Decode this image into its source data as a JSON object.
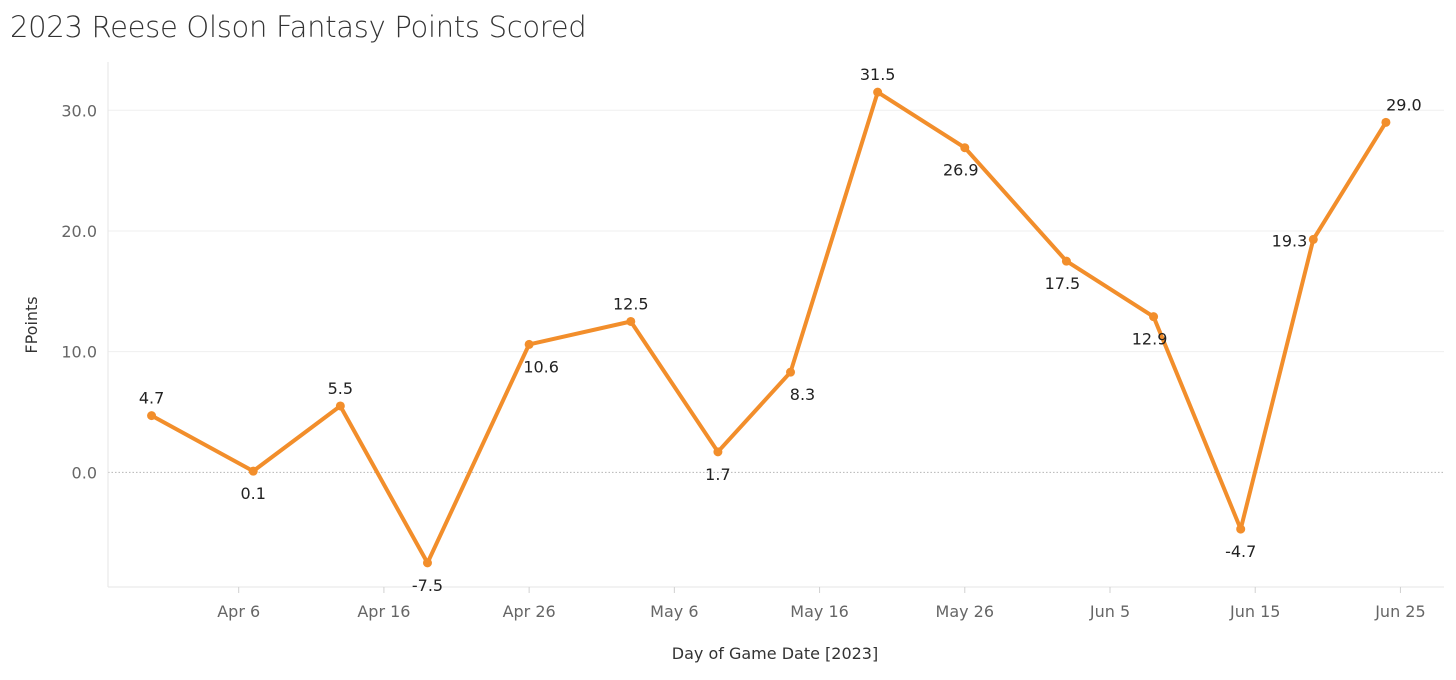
{
  "chart_data": {
    "type": "line",
    "title": "2023 Reese Olson Fantasy Points Scored",
    "xlabel": "Day of Game Date [2023]",
    "ylabel": "FPoints",
    "x_range": [
      "2023-03-28",
      "2023-06-28"
    ],
    "ylim": [
      -9.5,
      34
    ],
    "y_ticks": [
      0,
      10,
      20,
      30
    ],
    "y_tick_labels": [
      "0.0",
      "10.0",
      "20.0",
      "30.0"
    ],
    "x_ticks": [
      "2023-04-06",
      "2023-04-16",
      "2023-04-26",
      "2023-05-06",
      "2023-05-16",
      "2023-05-26",
      "2023-06-05",
      "2023-06-15",
      "2023-06-25"
    ],
    "x_tick_labels": [
      "Apr 6",
      "Apr 16",
      "Apr 26",
      "May 6",
      "May 16",
      "May 26",
      "Jun 5",
      "Jun 15",
      "Jun 25"
    ],
    "grid": true,
    "zero_line": true,
    "series": [
      {
        "color": "#F28E2B",
        "points": [
          {
            "x": "2023-03-31",
            "y": 4.7,
            "label": "4.7"
          },
          {
            "x": "2023-04-07",
            "y": 0.1,
            "label": "0.1"
          },
          {
            "x": "2023-04-13",
            "y": 5.5,
            "label": "5.5"
          },
          {
            "x": "2023-04-19",
            "y": -7.5,
            "label": "-7.5"
          },
          {
            "x": "2023-04-26",
            "y": 10.6,
            "label": "10.6"
          },
          {
            "x": "2023-05-03",
            "y": 12.5,
            "label": "12.5"
          },
          {
            "x": "2023-05-09",
            "y": 1.7,
            "label": "1.7"
          },
          {
            "x": "2023-05-14",
            "y": 8.3,
            "label": "8.3"
          },
          {
            "x": "2023-05-20",
            "y": 31.5,
            "label": "31.5"
          },
          {
            "x": "2023-05-26",
            "y": 26.9,
            "label": "26.9"
          },
          {
            "x": "2023-06-02",
            "y": 17.5,
            "label": "17.5"
          },
          {
            "x": "2023-06-08",
            "y": 12.9,
            "label": "12.9"
          },
          {
            "x": "2023-06-14",
            "y": -4.7,
            "label": "-4.7"
          },
          {
            "x": "2023-06-19",
            "y": 19.3,
            "label": "19.3"
          },
          {
            "x": "2023-06-24",
            "y": 29.0,
            "label": "29.0"
          }
        ]
      }
    ]
  }
}
